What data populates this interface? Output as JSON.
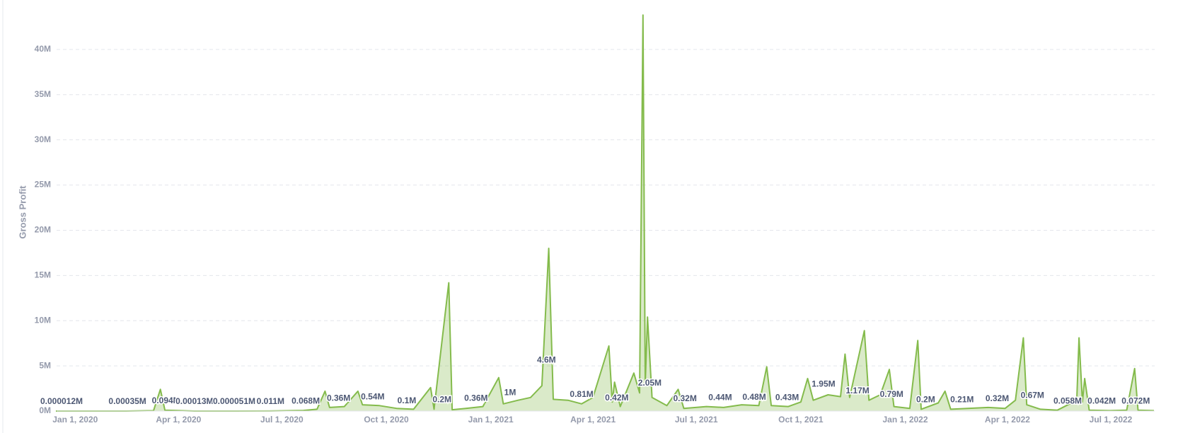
{
  "chart_data": {
    "type": "area",
    "y_label": "Gross Profit",
    "color": "#84bb4c",
    "grid": true,
    "xlim": [
      "2019-12-15",
      "2022-08-08"
    ],
    "xticks": [
      {
        "value": "2020-01-01",
        "label": "Jan 1, 2020"
      },
      {
        "value": "2020-04-01",
        "label": "Apr 1, 2020"
      },
      {
        "value": "2020-07-01",
        "label": "Jul 1, 2020"
      },
      {
        "value": "2020-10-01",
        "label": "Oct 1, 2020"
      },
      {
        "value": "2021-01-01",
        "label": "Jan 1, 2021"
      },
      {
        "value": "2021-04-01",
        "label": "Apr 1, 2021"
      },
      {
        "value": "2021-07-01",
        "label": "Jul 1, 2021"
      },
      {
        "value": "2021-10-01",
        "label": "Oct 1, 2021"
      },
      {
        "value": "2022-01-01",
        "label": "Jan 1, 2022"
      },
      {
        "value": "2022-04-01",
        "label": "Apr 1, 2022"
      },
      {
        "value": "2022-07-01",
        "label": "Jul 1, 2022"
      }
    ],
    "ylim": [
      0,
      45000000
    ],
    "yticks": [
      {
        "value": 0,
        "label": "0M"
      },
      {
        "value": 5000000,
        "label": "5M"
      },
      {
        "value": 10000000,
        "label": "10M"
      },
      {
        "value": 15000000,
        "label": "15M"
      },
      {
        "value": 20000000,
        "label": "20M"
      },
      {
        "value": 25000000,
        "label": "25M"
      },
      {
        "value": 30000000,
        "label": "30M"
      },
      {
        "value": 35000000,
        "label": "35M"
      },
      {
        "value": 40000000,
        "label": "40M"
      }
    ],
    "x": [
      "2019-12-15",
      "2020-01-15",
      "2020-02-15",
      "2020-03-10",
      "2020-03-16",
      "2020-03-20",
      "2020-04-15",
      "2020-05-20",
      "2020-06-20",
      "2020-07-20",
      "2020-08-01",
      "2020-08-08",
      "2020-08-12",
      "2020-08-25",
      "2020-09-06",
      "2020-09-10",
      "2020-09-25",
      "2020-10-10",
      "2020-10-25",
      "2020-11-09",
      "2020-11-12",
      "2020-11-25",
      "2020-11-28",
      "2020-12-10",
      "2020-12-25",
      "2021-01-08",
      "2021-01-12",
      "2021-01-25",
      "2021-02-05",
      "2021-02-15",
      "2021-02-21",
      "2021-02-25",
      "2021-03-10",
      "2021-03-22",
      "2021-04-01",
      "2021-04-15",
      "2021-04-18",
      "2021-04-20",
      "2021-04-25",
      "2021-05-07",
      "2021-05-12",
      "2021-05-15",
      "2021-05-17",
      "2021-05-19",
      "2021-05-23",
      "2021-06-05",
      "2021-06-15",
      "2021-06-20",
      "2021-07-10",
      "2021-07-25",
      "2021-08-10",
      "2021-08-25",
      "2021-09-01",
      "2021-09-05",
      "2021-09-20",
      "2021-10-01",
      "2021-10-07",
      "2021-10-12",
      "2021-10-25",
      "2021-11-05",
      "2021-11-09",
      "2021-11-13",
      "2021-11-26",
      "2021-11-30",
      "2021-12-10",
      "2021-12-18",
      "2021-12-22",
      "2022-01-05",
      "2022-01-12",
      "2022-01-15",
      "2022-01-30",
      "2022-02-05",
      "2022-02-10",
      "2022-02-25",
      "2022-03-15",
      "2022-03-30",
      "2022-04-08",
      "2022-04-15",
      "2022-04-18",
      "2022-04-30",
      "2022-05-15",
      "2022-06-01",
      "2022-06-03",
      "2022-06-06",
      "2022-06-08",
      "2022-06-12",
      "2022-06-30",
      "2022-07-15",
      "2022-07-22",
      "2022-07-25",
      "2022-08-08"
    ],
    "values": [
      0,
      12,
      350,
      50000,
      2400000,
      94000,
      130,
      51,
      11000,
      68000,
      200000,
      2200000,
      400000,
      500000,
      2200000,
      700000,
      600000,
      300000,
      200000,
      2600000,
      200000,
      14200000,
      150000,
      300000,
      500000,
      3700000,
      800000,
      1200000,
      1500000,
      2800000,
      18000000,
      1300000,
      1200000,
      800000,
      1500000,
      7200000,
      1000000,
      3200000,
      500000,
      4200000,
      2000000,
      43800000,
      3000000,
      10400000,
      1500000,
      600000,
      2400000,
      300000,
      500000,
      400000,
      700000,
      600000,
      4900000,
      600000,
      500000,
      1000000,
      3600000,
      1200000,
      1800000,
      1600000,
      6300000,
      1500000,
      8900000,
      1200000,
      1800000,
      4600000,
      500000,
      300000,
      7800000,
      200000,
      900000,
      2200000,
      200000,
      300000,
      400000,
      300000,
      1200000,
      8100000,
      700000,
      200000,
      100000,
      1200000,
      8100000,
      1000000,
      3600000,
      100000,
      50000,
      100000,
      4700000,
      100000,
      50000
    ],
    "annotations": [
      {
        "x": "2019-12-20",
        "value": 12,
        "label": "0.000012M"
      },
      {
        "x": "2020-02-16",
        "value": 350,
        "label": "0.00035M"
      },
      {
        "x": "2020-03-21",
        "value": 94000,
        "label": "0.094M"
      },
      {
        "x": "2020-04-15",
        "value": 130,
        "label": "0.00013M"
      },
      {
        "x": "2020-05-20",
        "value": 51,
        "label": "0.000051M"
      },
      {
        "x": "2020-06-21",
        "value": 11000,
        "label": "0.011M"
      },
      {
        "x": "2020-07-22",
        "value": 68000,
        "label": "0.068M"
      },
      {
        "x": "2020-08-20",
        "value": 360000,
        "label": "0.36M"
      },
      {
        "x": "2020-09-19",
        "value": 540000,
        "label": "0.54M"
      },
      {
        "x": "2020-10-19",
        "value": 100000,
        "label": "0.1M"
      },
      {
        "x": "2020-11-19",
        "value": 200000,
        "label": "0.2M"
      },
      {
        "x": "2020-12-19",
        "value": 360000,
        "label": "0.36M"
      },
      {
        "x": "2021-01-18",
        "value": 1000000,
        "label": "1M"
      },
      {
        "x": "2021-02-19",
        "value": 4600000,
        "label": "4.6M"
      },
      {
        "x": "2021-03-22",
        "value": 810000,
        "label": "0.81M"
      },
      {
        "x": "2021-04-22",
        "value": 420000,
        "label": "0.42M"
      },
      {
        "x": "2021-05-21",
        "value": 2050000,
        "label": "2.05M"
      },
      {
        "x": "2021-06-21",
        "value": 320000,
        "label": "0.32M"
      },
      {
        "x": "2021-07-22",
        "value": 440000,
        "label": "0.44M"
      },
      {
        "x": "2021-08-21",
        "value": 480000,
        "label": "0.48M"
      },
      {
        "x": "2021-09-19",
        "value": 430000,
        "label": "0.43M"
      },
      {
        "x": "2021-10-21",
        "value": 1950000,
        "label": "1.95M"
      },
      {
        "x": "2021-11-20",
        "value": 1170000,
        "label": "1.17M"
      },
      {
        "x": "2021-12-20",
        "value": 790000,
        "label": "0.79M"
      },
      {
        "x": "2022-01-19",
        "value": 200000,
        "label": "0.2M"
      },
      {
        "x": "2022-02-20",
        "value": 210000,
        "label": "0.21M"
      },
      {
        "x": "2022-03-23",
        "value": 320000,
        "label": "0.32M"
      },
      {
        "x": "2022-04-23",
        "value": 670000,
        "label": "0.67M"
      },
      {
        "x": "2022-05-24",
        "value": 58000,
        "label": "0.058M"
      },
      {
        "x": "2022-06-23",
        "value": 42000,
        "label": "0.042M"
      },
      {
        "x": "2022-07-23",
        "value": 72000,
        "label": "0.072M"
      }
    ]
  }
}
